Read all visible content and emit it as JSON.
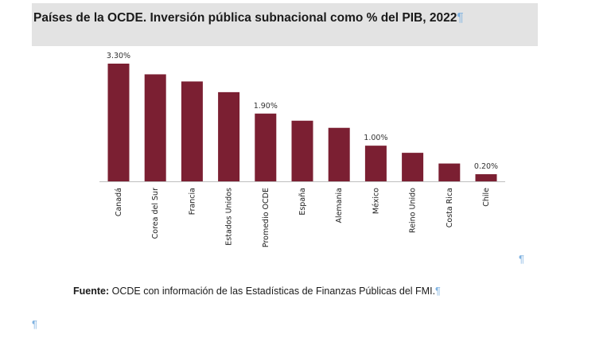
{
  "title": "Países de la OCDE. Inversión pública subnacional como % del PIB, 2022",
  "pilcrow": "¶",
  "source": {
    "label": "Fuente:",
    "text": " OCDE con información de las Estadísticas de Finanzas Públicas del FMI."
  },
  "chart_data": {
    "type": "bar",
    "title": "Países de la OCDE. Inversión pública subnacional como % del PIB, 2022",
    "categories": [
      "Canadá",
      "Corea del Sur",
      "Francia",
      "Estados Unidos",
      "Promedio OCDE",
      "España",
      "Alemania",
      "México",
      "Reino Unido",
      "Costa Rica",
      "Chile"
    ],
    "values": [
      3.3,
      3.0,
      2.8,
      2.5,
      1.9,
      1.7,
      1.5,
      1.0,
      0.8,
      0.5,
      0.2
    ],
    "data_labels": [
      "3.30%",
      "",
      "",
      "",
      "1.90%",
      "",
      "",
      "1.00%",
      "",
      "",
      "0.20%"
    ],
    "ylim": [
      0,
      3.3
    ],
    "color": "#7b1f32",
    "grid": false,
    "legend": "none"
  }
}
